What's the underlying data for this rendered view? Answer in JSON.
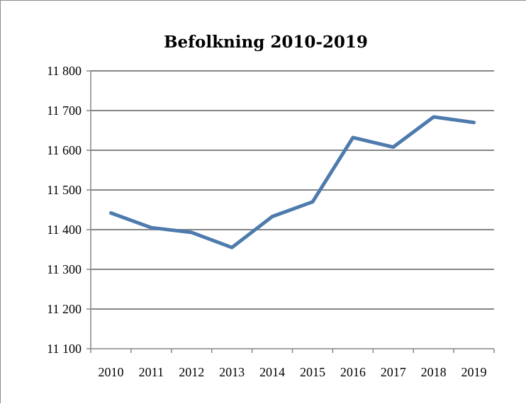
{
  "chart_data": {
    "type": "line",
    "title": "Befolkning 2010-2019",
    "xlabel": "",
    "ylabel": "",
    "categories": [
      "2010",
      "2011",
      "2012",
      "2013",
      "2014",
      "2015",
      "2016",
      "2017",
      "2018",
      "2019"
    ],
    "series": [
      {
        "values": [
          11442,
          11405,
          11393,
          11355,
          11433,
          11470,
          11632,
          11608,
          11684,
          11670
        ],
        "color": "#4e7bad"
      }
    ],
    "ylim": [
      11100,
      11800
    ],
    "yticks": [
      11100,
      11200,
      11300,
      11400,
      11500,
      11600,
      11700,
      11800
    ],
    "ytick_labels": [
      "11 100",
      "11 200",
      "11 300",
      "11 400",
      "11 500",
      "11 600",
      "11 700",
      "11 800"
    ],
    "grid": true,
    "legend": "none"
  }
}
